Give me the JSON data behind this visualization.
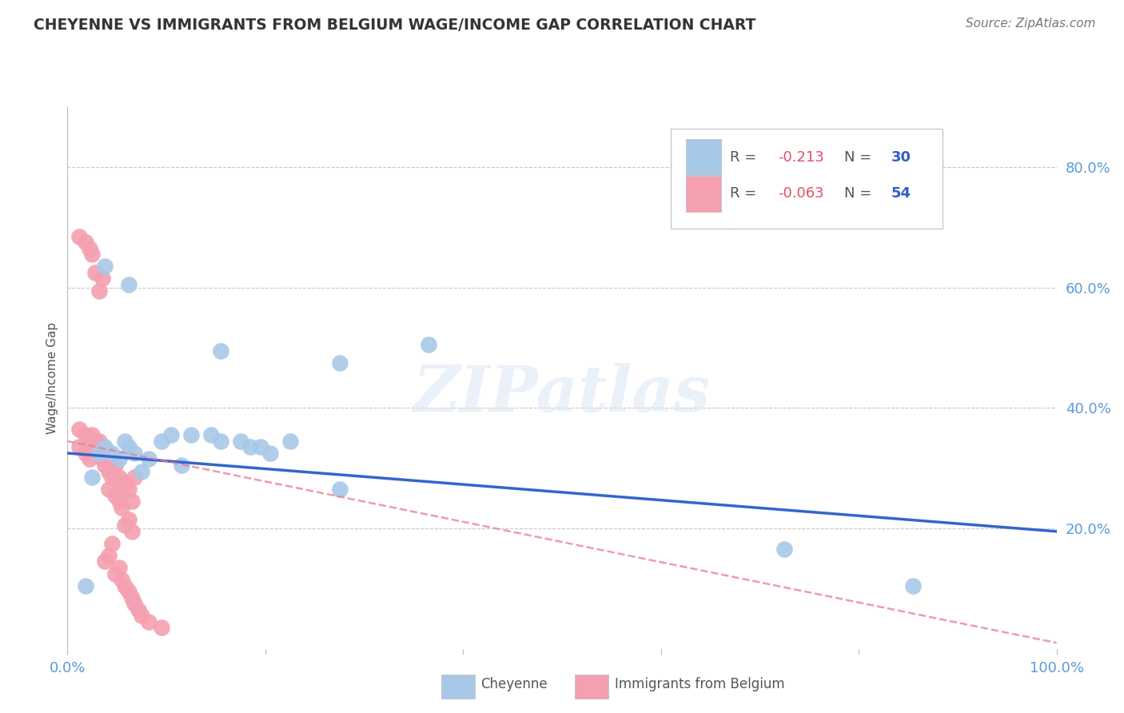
{
  "title": "CHEYENNE VS IMMIGRANTS FROM BELGIUM WAGE/INCOME GAP CORRELATION CHART",
  "source": "Source: ZipAtlas.com",
  "ylabel": "Wage/Income Gap",
  "xlim": [
    0.0,
    1.0
  ],
  "ylim": [
    0.0,
    0.9
  ],
  "ytick_labels_right": [
    "20.0%",
    "40.0%",
    "60.0%",
    "80.0%"
  ],
  "ytick_values_right": [
    0.2,
    0.4,
    0.6,
    0.8
  ],
  "cheyenne_R": -0.213,
  "cheyenne_N": 30,
  "belgium_R": -0.063,
  "belgium_N": 54,
  "cheyenne_color": "#a8c8e8",
  "belgium_color": "#f4a0b0",
  "cheyenne_line_color": "#3366cc",
  "belgium_line_color": "#e87898",
  "cheyenne_points_x": [
    0.018,
    0.025,
    0.032,
    0.038,
    0.045,
    0.052,
    0.058,
    0.062,
    0.068,
    0.075,
    0.082,
    0.095,
    0.105,
    0.115,
    0.125,
    0.145,
    0.155,
    0.175,
    0.185,
    0.195,
    0.205,
    0.225,
    0.275,
    0.365,
    0.038,
    0.062,
    0.155,
    0.275,
    0.725,
    0.855
  ],
  "cheyenne_points_y": [
    0.105,
    0.285,
    0.325,
    0.335,
    0.325,
    0.315,
    0.345,
    0.335,
    0.325,
    0.295,
    0.315,
    0.345,
    0.355,
    0.305,
    0.355,
    0.355,
    0.345,
    0.345,
    0.335,
    0.335,
    0.325,
    0.345,
    0.475,
    0.505,
    0.635,
    0.605,
    0.495,
    0.265,
    0.165,
    0.105
  ],
  "belgium_points_x": [
    0.012,
    0.018,
    0.022,
    0.025,
    0.028,
    0.032,
    0.035,
    0.038,
    0.042,
    0.045,
    0.048,
    0.052,
    0.055,
    0.058,
    0.062,
    0.065,
    0.068,
    0.012,
    0.018,
    0.022,
    0.025,
    0.028,
    0.032,
    0.035,
    0.038,
    0.042,
    0.045,
    0.048,
    0.052,
    0.055,
    0.058,
    0.062,
    0.065,
    0.012,
    0.018,
    0.022,
    0.025,
    0.028,
    0.032,
    0.035,
    0.038,
    0.042,
    0.045,
    0.048,
    0.052,
    0.055,
    0.058,
    0.062,
    0.065,
    0.068,
    0.072,
    0.075,
    0.082,
    0.095
  ],
  "belgium_points_y": [
    0.335,
    0.325,
    0.315,
    0.345,
    0.335,
    0.345,
    0.315,
    0.315,
    0.295,
    0.295,
    0.305,
    0.285,
    0.265,
    0.275,
    0.265,
    0.245,
    0.285,
    0.365,
    0.355,
    0.345,
    0.355,
    0.345,
    0.335,
    0.335,
    0.305,
    0.265,
    0.285,
    0.255,
    0.245,
    0.235,
    0.205,
    0.215,
    0.195,
    0.685,
    0.675,
    0.665,
    0.655,
    0.625,
    0.595,
    0.615,
    0.145,
    0.155,
    0.175,
    0.125,
    0.135,
    0.115,
    0.105,
    0.095,
    0.085,
    0.075,
    0.065,
    0.055,
    0.045,
    0.035
  ],
  "watermark": "ZIPatlas",
  "background_color": "#ffffff",
  "grid_color": "#c8c8c8",
  "title_color": "#333333",
  "cheyenne_line_x0": 0.0,
  "cheyenne_line_y0": 0.325,
  "cheyenne_line_x1": 1.0,
  "cheyenne_line_y1": 0.195,
  "belgium_line_x0": 0.0,
  "belgium_line_y0": 0.345,
  "belgium_line_x1": 1.0,
  "belgium_line_y1": 0.01
}
